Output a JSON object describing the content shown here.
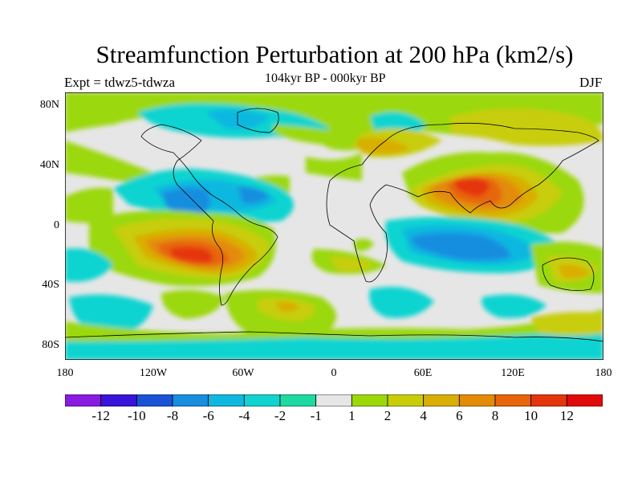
{
  "header": {
    "title": "Streamfunction Perturbation at 200 hPa (km2/s)",
    "experiment": "Expt = tdwz5-tdwza",
    "subtitle": "104kyr BP - 000kyr BP",
    "season": "DJF"
  },
  "axes": {
    "y_ticks": [
      "80N",
      "40N",
      "0",
      "40S",
      "80S"
    ],
    "x_ticks": [
      "180",
      "120W",
      "60W",
      "0",
      "60E",
      "120E",
      "180"
    ]
  },
  "colorbar": {
    "colors": [
      "#8a1be0",
      "#3a14d8",
      "#1c52d6",
      "#178ee0",
      "#10b8e0",
      "#11d4d0",
      "#1ed9a1",
      "#e6e6e6",
      "#9bd80a",
      "#c8cd07",
      "#d9ae05",
      "#e38b07",
      "#e7650b",
      "#e5350d",
      "#e00a0a"
    ],
    "labels": [
      "-12",
      "-10",
      "-8",
      "-6",
      "-4",
      "-2",
      "-1",
      "1",
      "2",
      "4",
      "6",
      "8",
      "10",
      "12"
    ]
  },
  "map_data": {
    "projection": "cylindrical equidistant",
    "lon_range": [
      -180,
      180
    ],
    "lat_range": [
      -90,
      90
    ]
  }
}
